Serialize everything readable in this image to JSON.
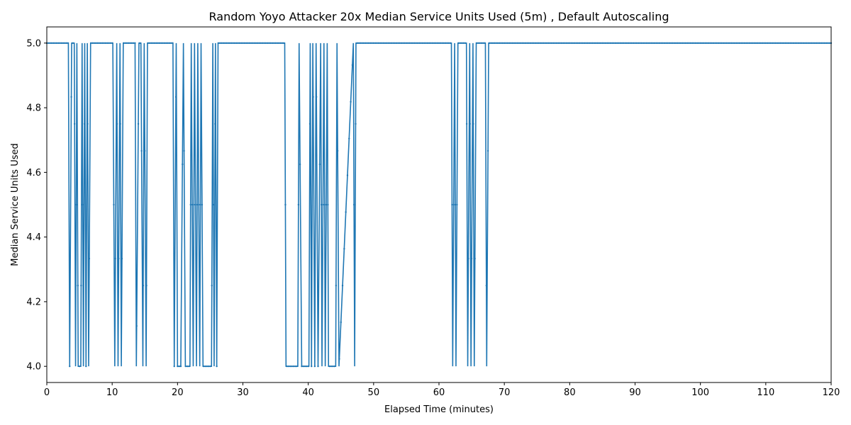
{
  "chart_data": {
    "type": "line",
    "title": "Random Yoyo Attacker 20x Median Service Units Used (5m) , Default Autoscaling",
    "xlabel": "Elapsed Time (minutes)",
    "ylabel": "Median Service Units Used",
    "xlim": [
      0,
      120
    ],
    "ylim": [
      3.95,
      5.05
    ],
    "x_ticks": [
      0,
      10,
      20,
      30,
      40,
      50,
      60,
      70,
      80,
      90,
      100,
      110,
      120
    ],
    "y_ticks": [
      4.0,
      4.2,
      4.4,
      4.6,
      4.8,
      5.0
    ],
    "y_tick_labels": [
      "4.0",
      "4.2",
      "4.4",
      "4.6",
      "4.8",
      "5.0"
    ],
    "grid": false,
    "legend": "none",
    "line_color": "#1f77b4",
    "series": [
      {
        "x": [
          0,
          3.3,
          3.5,
          3.8,
          4.0,
          4.2,
          4.4,
          4.6,
          4.8,
          5.0,
          5.2,
          5.4,
          5.6,
          5.8,
          6.0,
          6.2,
          6.4,
          6.7,
          10.1,
          10.4,
          10.7,
          10.9,
          11.2,
          11.4,
          11.7,
          13.5,
          13.7,
          14.1,
          14.4,
          14.7,
          14.9,
          15.2,
          15.4,
          15.9,
          19.3,
          19.5,
          19.8,
          20.0,
          20.3,
          20.5,
          20.9,
          21.2,
          21.9,
          22.1,
          22.4,
          22.6,
          22.9,
          23.1,
          23.4,
          23.6,
          23.9,
          24.1,
          25.2,
          25.4,
          25.6,
          25.8,
          26.0,
          26.2,
          36.4,
          36.6,
          38.4,
          38.6,
          39.0,
          40.1,
          40.3,
          40.5,
          40.7,
          41.0,
          41.2,
          41.5,
          41.9,
          42.1,
          42.4,
          42.6,
          42.9,
          43.1,
          44.2,
          44.4,
          44.7,
          46.9,
          47.1,
          47.3,
          61.9,
          62.1,
          62.4,
          62.6,
          62.9,
          64.2,
          64.4,
          64.7,
          64.9,
          65.2,
          65.4,
          65.7,
          67.1,
          67.3,
          67.6,
          120
        ],
        "y": [
          5,
          5,
          4,
          5,
          5,
          5,
          4,
          5,
          4,
          4,
          4,
          5,
          4,
          5,
          4,
          5,
          4,
          5,
          5,
          4,
          5,
          4,
          5,
          4,
          5,
          5,
          4,
          5,
          5,
          4,
          5,
          4,
          5,
          5,
          5,
          4,
          5,
          4,
          4,
          4,
          5,
          4,
          4,
          5,
          4,
          5,
          4,
          5,
          4,
          5,
          4,
          4,
          4,
          5,
          4,
          5,
          4,
          5,
          5,
          4,
          4,
          5,
          4,
          4,
          5,
          4,
          5,
          4,
          5,
          4,
          5,
          4,
          5,
          4,
          5,
          4,
          4,
          5,
          4,
          5,
          4,
          5,
          5,
          4,
          5,
          4,
          5,
          5,
          4,
          5,
          4,
          5,
          4,
          5,
          5,
          4,
          5,
          5
        ]
      }
    ]
  }
}
